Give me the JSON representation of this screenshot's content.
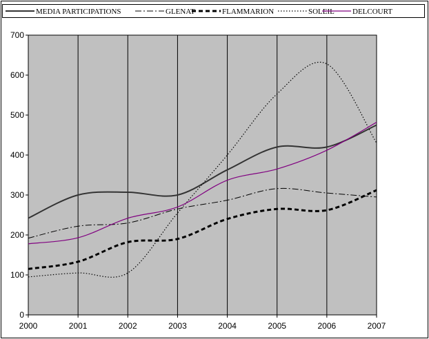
{
  "chart_data": {
    "type": "line",
    "title": "",
    "xlabel": "",
    "ylabel": "",
    "x": [
      2000,
      2001,
      2002,
      2003,
      2004,
      2005,
      2006,
      2007
    ],
    "x_ticks": [
      "2000",
      "2001",
      "2002",
      "2003",
      "2004",
      "2005",
      "2006",
      "2007"
    ],
    "ylim": [
      0,
      700
    ],
    "y_ticks": [
      "0",
      "100",
      "200",
      "300",
      "400",
      "500",
      "600",
      "700"
    ],
    "vertical_gridlines": true,
    "plot_background": "#c0c0c0",
    "legend_position": "top",
    "series": [
      {
        "name": "MEDIA PARTICIPATIONS",
        "style": "solid-thick",
        "color": "#333333",
        "values": [
          242,
          300,
          307,
          300,
          363,
          420,
          420,
          475
        ]
      },
      {
        "name": "GLENAT",
        "style": "dash-dot",
        "color": "#000000",
        "values": [
          192,
          222,
          230,
          265,
          287,
          316,
          305,
          295
        ]
      },
      {
        "name": "FLAMMARION",
        "style": "dashed-thick",
        "color": "#000000",
        "values": [
          115,
          133,
          182,
          190,
          240,
          265,
          262,
          312
        ]
      },
      {
        "name": "SOLEIL",
        "style": "dotted",
        "color": "#000000",
        "values": [
          95,
          105,
          105,
          255,
          400,
          553,
          628,
          430
        ]
      },
      {
        "name": "DELCOURT",
        "style": "solid",
        "color": "#800080",
        "values": [
          178,
          193,
          242,
          270,
          337,
          365,
          412,
          482
        ]
      }
    ]
  }
}
